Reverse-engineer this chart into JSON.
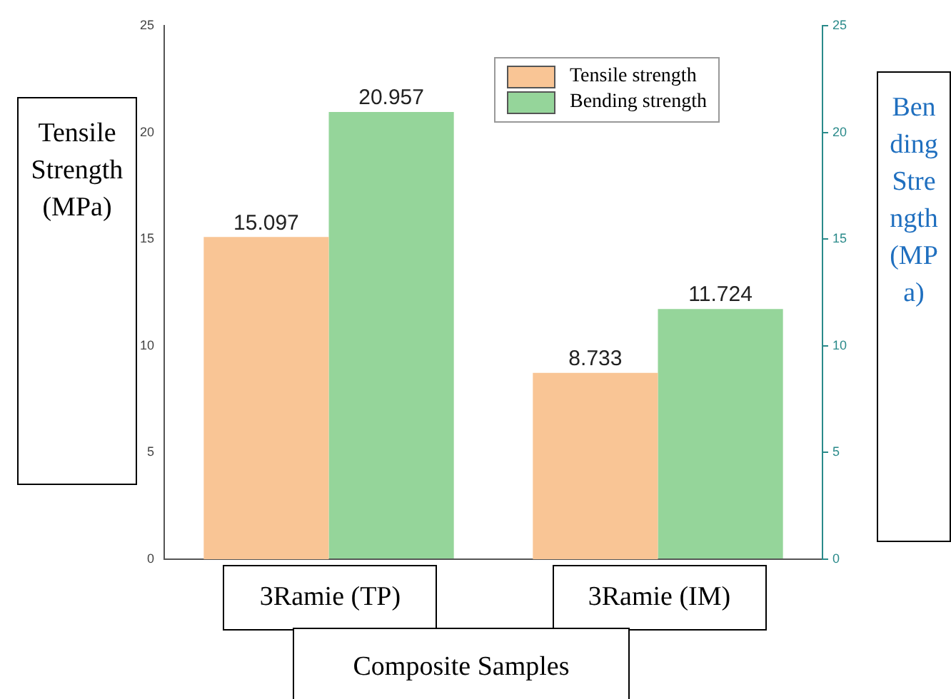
{
  "chart_data": {
    "type": "bar",
    "categories": [
      "3Ramie (TP)",
      "3Ramie (IM)"
    ],
    "series": [
      {
        "name": "Tensile strength",
        "color": "#f9c595",
        "values": [
          15.097,
          8.733
        ]
      },
      {
        "name": "Bending strength",
        "color": "#95d59a",
        "values": [
          20.957,
          11.724
        ],
        "axis": "y2"
      }
    ],
    "ylim": [
      0,
      25
    ],
    "yticks": [
      0,
      5,
      10,
      15,
      20,
      25
    ],
    "y2lim": [
      0,
      25
    ],
    "y2ticks": [
      0,
      5,
      10,
      15,
      20,
      25
    ],
    "ylabel": "Tensile Strength (MPa)",
    "y2label": "Bending Strength (MPa)",
    "xlabel": "Composite Samples",
    "data_labels": true,
    "legend": "top right",
    "grid": false
  }
}
